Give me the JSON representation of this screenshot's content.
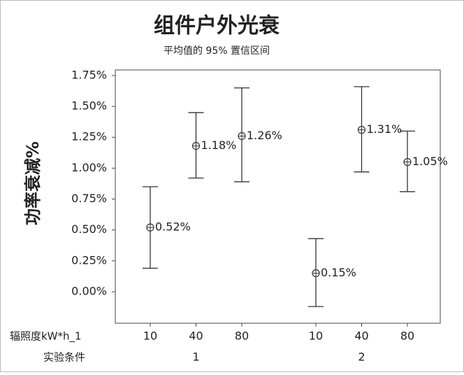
{
  "chart_data": {
    "type": "interval",
    "title": "组件户外光衰",
    "subtitle": "平均值的 95% 置信区间",
    "ylabel": "功率衰减%",
    "x_levels": {
      "name": "辐照度kW*h_1",
      "labels": [
        "10",
        "40",
        "80",
        "10",
        "40",
        "80"
      ]
    },
    "groups": {
      "name": "实验条件",
      "labels": [
        "1",
        "2"
      ]
    },
    "values": [
      0.52,
      1.18,
      1.26,
      0.15,
      1.31,
      1.05
    ],
    "value_labels": [
      "0.52%",
      "1.18%",
      "1.26%",
      "0.15%",
      "1.31%",
      "1.05%"
    ],
    "lower": [
      0.19,
      0.92,
      0.89,
      -0.12,
      0.97,
      0.81
    ],
    "upper": [
      0.85,
      1.45,
      1.65,
      0.43,
      1.66,
      1.3
    ],
    "color": "#333333",
    "ylim": [
      -0.255,
      1.795
    ],
    "yticks": [
      {
        "value": 0,
        "label": "0.00%"
      },
      {
        "value": 0.25,
        "label": "0.25%"
      },
      {
        "value": 0.5,
        "label": "0.50%"
      },
      {
        "value": 0.75,
        "label": "0.75%"
      },
      {
        "value": 1,
        "label": "1.00%"
      },
      {
        "value": 1.25,
        "label": "1.25%"
      },
      {
        "value": 1.5,
        "label": "1.50%"
      },
      {
        "value": 1.75,
        "label": "1.75%"
      }
    ]
  }
}
